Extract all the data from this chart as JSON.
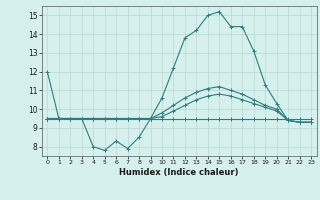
{
  "xlabel": "Humidex (Indice chaleur)",
  "bg_color": "#d6f0ee",
  "line_color": "#2e7d7d",
  "grid_color": "#b8d8d4",
  "xlim": [
    -0.5,
    23.5
  ],
  "ylim": [
    7.5,
    15.5
  ],
  "yticks": [
    8,
    9,
    10,
    11,
    12,
    13,
    14,
    15
  ],
  "xticks": [
    0,
    1,
    2,
    3,
    4,
    5,
    6,
    7,
    8,
    9,
    10,
    11,
    12,
    13,
    14,
    15,
    16,
    17,
    18,
    19,
    20,
    21,
    22,
    23
  ],
  "lines": [
    {
      "x": [
        0,
        1,
        2,
        3,
        4,
        5,
        6,
        7,
        8,
        9,
        10,
        11,
        12,
        13,
        14,
        15,
        16,
        17,
        18,
        19,
        20,
        21,
        22,
        23
      ],
      "y": [
        12,
        9.5,
        9.5,
        9.5,
        8.0,
        7.8,
        8.3,
        7.9,
        8.5,
        9.5,
        10.6,
        12.2,
        13.8,
        14.2,
        15.0,
        15.2,
        14.4,
        14.4,
        13.1,
        11.3,
        10.3,
        9.4,
        9.3,
        9.3
      ]
    },
    {
      "x": [
        0,
        1,
        2,
        3,
        4,
        5,
        6,
        7,
        8,
        9,
        10,
        11,
        12,
        13,
        14,
        15,
        16,
        17,
        18,
        19,
        20,
        21,
        22,
        23
      ],
      "y": [
        9.5,
        9.5,
        9.5,
        9.5,
        9.5,
        9.5,
        9.5,
        9.5,
        9.5,
        9.5,
        9.5,
        9.5,
        9.5,
        9.5,
        9.5,
        9.5,
        9.5,
        9.5,
        9.5,
        9.5,
        9.5,
        9.5,
        9.5,
        9.5
      ]
    },
    {
      "x": [
        0,
        1,
        2,
        3,
        4,
        5,
        6,
        7,
        8,
        9,
        10,
        11,
        12,
        13,
        14,
        15,
        16,
        17,
        18,
        19,
        20,
        21,
        22,
        23
      ],
      "y": [
        9.5,
        9.5,
        9.5,
        9.5,
        9.5,
        9.5,
        9.5,
        9.5,
        9.5,
        9.5,
        9.8,
        10.2,
        10.6,
        10.9,
        11.1,
        11.2,
        11.0,
        10.8,
        10.5,
        10.2,
        10.0,
        9.4,
        9.3,
        9.3
      ]
    },
    {
      "x": [
        0,
        1,
        2,
        3,
        4,
        5,
        6,
        7,
        8,
        9,
        10,
        11,
        12,
        13,
        14,
        15,
        16,
        17,
        18,
        19,
        20,
        21,
        22,
        23
      ],
      "y": [
        9.5,
        9.5,
        9.5,
        9.5,
        9.5,
        9.5,
        9.5,
        9.5,
        9.5,
        9.5,
        9.6,
        9.9,
        10.2,
        10.5,
        10.7,
        10.8,
        10.7,
        10.5,
        10.3,
        10.1,
        9.9,
        9.4,
        9.3,
        9.3
      ]
    }
  ]
}
